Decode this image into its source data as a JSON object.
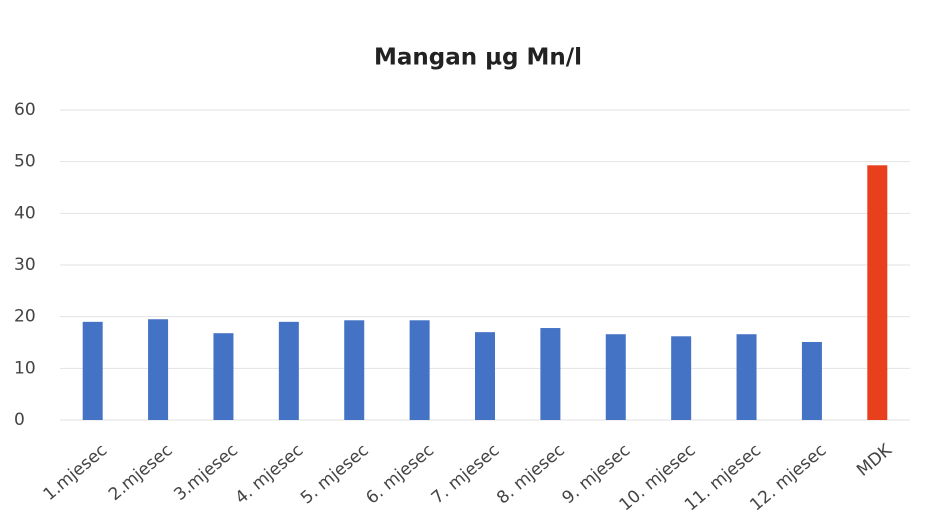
{
  "chart_data": {
    "type": "bar",
    "title": "Mangan µg Mn/l",
    "categories": [
      "1.mjesec",
      "2.mjesec",
      "3.mjesec",
      "4. mjesec",
      "5. mjesec",
      "6. mjesec",
      "7. mjesec",
      "8. mjesec",
      "9. mjesec",
      "10. mjesec",
      "11. mjesec",
      "12. mjesec",
      "MDK"
    ],
    "values": [
      19.0,
      19.5,
      16.8,
      19.0,
      19.3,
      19.3,
      17.0,
      17.8,
      16.6,
      16.2,
      16.6,
      15.1,
      49.3
    ],
    "colors": [
      "#4472c4",
      "#4472c4",
      "#4472c4",
      "#4472c4",
      "#4472c4",
      "#4472c4",
      "#4472c4",
      "#4472c4",
      "#4472c4",
      "#4472c4",
      "#4472c4",
      "#4472c4",
      "#e8401c"
    ],
    "ylim": [
      0,
      60
    ],
    "yticks": [
      0,
      10,
      20,
      30,
      40,
      50,
      60
    ],
    "grid": true
  }
}
